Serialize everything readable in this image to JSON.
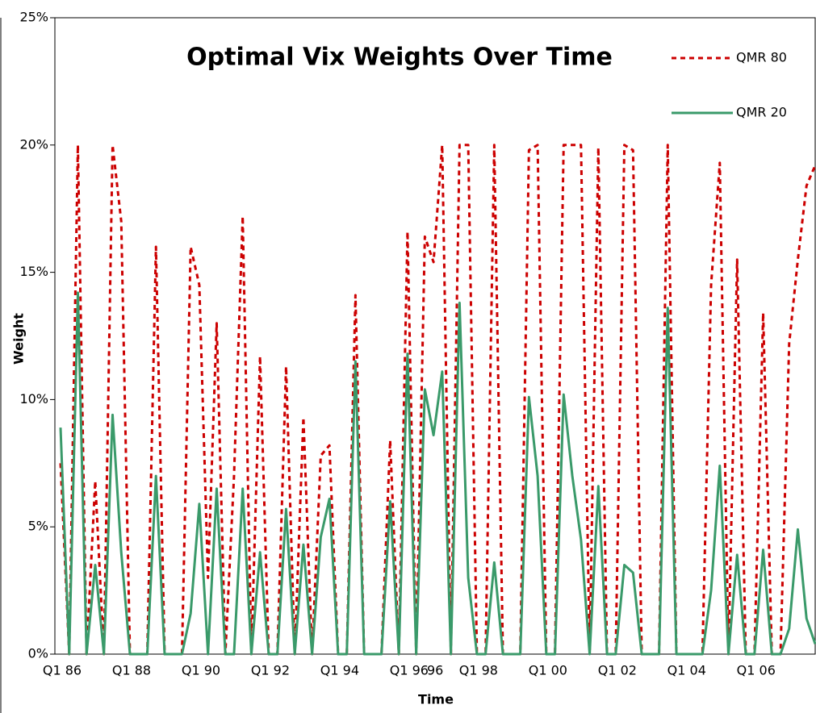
{
  "chart_data": {
    "type": "line",
    "title": "Optimal Vix Weights Over Time",
    "xlabel": "Time",
    "ylabel": "Weight",
    "categories": [
      "Q1 86",
      null,
      null,
      null,
      null,
      null,
      null,
      null,
      "Q1 88",
      null,
      null,
      null,
      null,
      null,
      null,
      null,
      "Q1 90",
      null,
      null,
      null,
      null,
      null,
      null,
      null,
      "Q1 92",
      null,
      null,
      null,
      null,
      null,
      null,
      null,
      "Q1 94",
      null,
      null,
      null,
      null,
      null,
      null,
      null,
      "Q1 96",
      null,
      null,
      "96",
      null,
      null,
      null,
      null,
      "Q1 98",
      null,
      null,
      null,
      null,
      null,
      null,
      null,
      "Q1 00",
      null,
      null,
      null,
      null,
      null,
      null,
      null,
      "Q1 02",
      null,
      null,
      null,
      null,
      null,
      null,
      null,
      "Q1 04",
      null,
      null,
      null,
      null,
      null,
      null,
      null,
      "Q1 06",
      null,
      null,
      null,
      null,
      null,
      null,
      null
    ],
    "series": [
      {
        "name": "QMR 80",
        "color": "#cc0000",
        "dash": true,
        "values": [
          7.5,
          0,
          20,
          0,
          6.8,
          0,
          20,
          17,
          0,
          0,
          0,
          16,
          0,
          0,
          0,
          16,
          14.5,
          3,
          13,
          0,
          7,
          17.2,
          0,
          11.7,
          0,
          0,
          11.3,
          0,
          9.3,
          0,
          7.8,
          8.2,
          0,
          0,
          14.1,
          0,
          0,
          0,
          8.4,
          0,
          16.6,
          0,
          16.4,
          15.4,
          20,
          0,
          20,
          20,
          0,
          0,
          20,
          0,
          0,
          0,
          19.8,
          20,
          0,
          0,
          20,
          20,
          20,
          0,
          19.9,
          0,
          0,
          20,
          19.8,
          0,
          0,
          0,
          20,
          0,
          0,
          0,
          0,
          14.5,
          19.3,
          0,
          15.5,
          0,
          0,
          13.4,
          0,
          0,
          12.2,
          15.5,
          18.4,
          19.2
        ]
      },
      {
        "name": "QMR 20",
        "color": "#3a9a6a",
        "dash": false,
        "values": [
          8.9,
          0,
          14.2,
          0,
          3.5,
          0,
          9.4,
          4,
          0,
          0,
          0,
          7.0,
          0,
          0,
          0,
          1.6,
          5.9,
          0,
          6.5,
          0,
          0,
          6.5,
          0,
          4.0,
          0,
          0,
          5.7,
          0,
          4.3,
          0,
          4.6,
          6.1,
          0,
          0,
          11.5,
          0,
          0,
          0,
          6.0,
          0,
          11.8,
          0,
          10.4,
          8.6,
          11.1,
          0,
          13.8,
          3,
          0,
          0,
          3.6,
          0,
          0,
          0,
          10.1,
          7,
          0,
          0,
          10.2,
          7,
          4.5,
          0,
          6.6,
          0,
          0,
          3.5,
          3.2,
          0,
          0,
          0,
          13.6,
          0,
          0,
          0,
          0,
          2.5,
          7.4,
          0,
          3.9,
          0,
          0,
          4.1,
          0,
          0,
          1.0,
          4.9,
          1.4,
          0.4
        ]
      }
    ],
    "ylim": [
      0,
      25
    ],
    "yticks": [
      {
        "value": 0,
        "label": "0%"
      },
      {
        "value": 5,
        "label": "5%"
      },
      {
        "value": 10,
        "label": "10%"
      },
      {
        "value": 15,
        "label": "15%"
      },
      {
        "value": 20,
        "label": "20%"
      },
      {
        "value": 25,
        "label": "25%"
      }
    ],
    "legend": "upper right",
    "grid": false
  }
}
